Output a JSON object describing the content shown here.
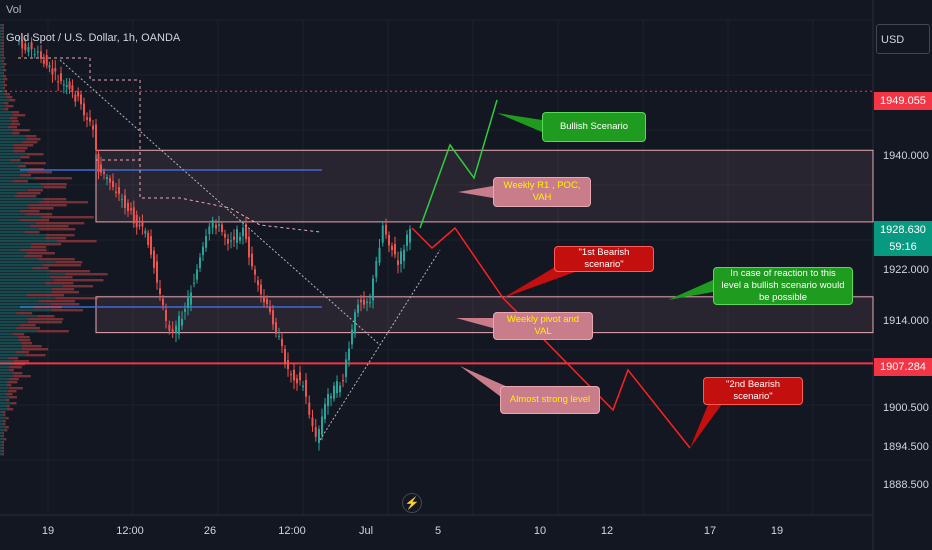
{
  "header": {
    "vol_label": "Vol",
    "symbol": "Gold Spot / U.S. Dollar, 1h, OANDA"
  },
  "price_scale": {
    "currency": "USD",
    "ticks": [
      "1940.000",
      "1922.000",
      "1914.000",
      "1900.500",
      "1894.500",
      "1888.500"
    ],
    "badges": {
      "top_level": "1949.055",
      "current_price": "1928.630",
      "countdown": "59:16",
      "support_level": "1907.284"
    }
  },
  "time_axis": {
    "labels": [
      "19",
      "12:00",
      "26",
      "12:00",
      "Jul",
      "5",
      "10",
      "12",
      "17",
      "19"
    ]
  },
  "annotations": {
    "bullish": "Bullish Scenario",
    "weekly_r1": "Weekly R1 , POC, VAH",
    "bearish_1": "\"1st Bearish scenario\"",
    "reaction": "In case of reaction to this level a bullish scenario would be possible",
    "weekly_pivot": "Weekly pivot and VAL",
    "strong_level": "Almost strong level",
    "bearish_2": "\"2nd Bearish scenario\""
  },
  "colors": {
    "background": "#131722",
    "up": "#26a69a",
    "down": "#ef5350",
    "zone": "#e9a9b3",
    "level": "#f23645"
  },
  "chart_data": {
    "type": "candlestick",
    "y_range": [
      1884,
      1960
    ],
    "levels": [
      {
        "price": 1949.055,
        "style": "dotted"
      },
      {
        "price": 1907.284,
        "style": "solid"
      }
    ],
    "zones": [
      {
        "top": 1940.0,
        "bottom": 1929.0
      },
      {
        "top": 1917.5,
        "bottom": 1912.0
      }
    ]
  }
}
